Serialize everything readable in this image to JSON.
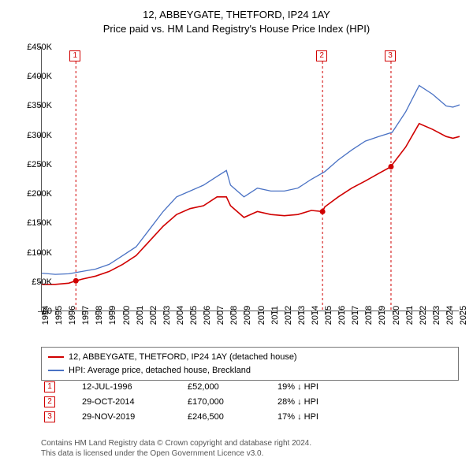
{
  "title_line1": "12, ABBEYGATE, THETFORD, IP24 1AY",
  "title_line2": "Price paid vs. HM Land Registry's House Price Index (HPI)",
  "chart": {
    "type": "line",
    "background_color": "#ffffff",
    "axis_color": "#555555",
    "x_range": [
      1994,
      2025
    ],
    "y_range": [
      0,
      450000
    ],
    "y_ticks": [
      0,
      50000,
      100000,
      150000,
      200000,
      250000,
      300000,
      350000,
      400000,
      450000
    ],
    "y_tick_labels": [
      "£0",
      "£50K",
      "£100K",
      "£150K",
      "£200K",
      "£250K",
      "£300K",
      "£350K",
      "£400K",
      "£450K"
    ],
    "x_ticks": [
      1994,
      1995,
      1996,
      1997,
      1998,
      1999,
      2000,
      2001,
      2002,
      2003,
      2004,
      2005,
      2006,
      2007,
      2008,
      2009,
      2010,
      2011,
      2012,
      2013,
      2014,
      2015,
      2016,
      2017,
      2018,
      2019,
      2020,
      2021,
      2022,
      2023,
      2024,
      2025
    ],
    "label_fontsize": 11,
    "series": [
      {
        "name": "property",
        "label": "12, ABBEYGATE, THETFORD, IP24 1AY (detached house)",
        "color": "#d00000",
        "line_width": 1.6,
        "data": [
          [
            1994,
            46000
          ],
          [
            1995,
            46000
          ],
          [
            1996,
            48000
          ],
          [
            1996.53,
            52000
          ],
          [
            1997,
            55000
          ],
          [
            1998,
            60000
          ],
          [
            1999,
            68000
          ],
          [
            2000,
            80000
          ],
          [
            2001,
            95000
          ],
          [
            2002,
            120000
          ],
          [
            2003,
            145000
          ],
          [
            2004,
            165000
          ],
          [
            2005,
            175000
          ],
          [
            2006,
            180000
          ],
          [
            2007,
            195000
          ],
          [
            2007.7,
            195000
          ],
          [
            2008,
            180000
          ],
          [
            2009,
            160000
          ],
          [
            2010,
            170000
          ],
          [
            2011,
            165000
          ],
          [
            2012,
            163000
          ],
          [
            2013,
            165000
          ],
          [
            2014,
            172000
          ],
          [
            2014.83,
            170000
          ],
          [
            2015,
            178000
          ],
          [
            2016,
            195000
          ],
          [
            2017,
            210000
          ],
          [
            2018,
            222000
          ],
          [
            2019,
            235000
          ],
          [
            2019.91,
            246500
          ],
          [
            2020,
            250000
          ],
          [
            2021,
            280000
          ],
          [
            2022,
            320000
          ],
          [
            2023,
            310000
          ],
          [
            2024,
            298000
          ],
          [
            2024.5,
            295000
          ],
          [
            2025,
            298000
          ]
        ]
      },
      {
        "name": "hpi",
        "label": "HPI: Average price, detached house, Breckland",
        "color": "#4a72c4",
        "line_width": 1.3,
        "data": [
          [
            1994,
            65000
          ],
          [
            1995,
            63000
          ],
          [
            1996,
            64000
          ],
          [
            1997,
            68000
          ],
          [
            1998,
            72000
          ],
          [
            1999,
            80000
          ],
          [
            2000,
            95000
          ],
          [
            2001,
            110000
          ],
          [
            2002,
            140000
          ],
          [
            2003,
            170000
          ],
          [
            2004,
            195000
          ],
          [
            2005,
            205000
          ],
          [
            2006,
            215000
          ],
          [
            2007,
            230000
          ],
          [
            2007.7,
            240000
          ],
          [
            2008,
            215000
          ],
          [
            2009,
            195000
          ],
          [
            2010,
            210000
          ],
          [
            2011,
            205000
          ],
          [
            2012,
            205000
          ],
          [
            2013,
            210000
          ],
          [
            2014,
            225000
          ],
          [
            2015,
            238000
          ],
          [
            2016,
            258000
          ],
          [
            2017,
            275000
          ],
          [
            2018,
            290000
          ],
          [
            2019,
            298000
          ],
          [
            2020,
            305000
          ],
          [
            2021,
            340000
          ],
          [
            2022,
            385000
          ],
          [
            2023,
            370000
          ],
          [
            2024,
            350000
          ],
          [
            2024.5,
            348000
          ],
          [
            2025,
            352000
          ]
        ]
      }
    ],
    "markers": [
      {
        "n": "1",
        "year": 1996.53,
        "price": 52000,
        "color": "#d00000"
      },
      {
        "n": "2",
        "year": 2014.83,
        "price": 170000,
        "color": "#d00000"
      },
      {
        "n": "3",
        "year": 2019.91,
        "price": 246500,
        "color": "#d00000"
      }
    ]
  },
  "legend": {
    "border_color": "#777777",
    "series1_color": "#d00000",
    "series1_label": "12, ABBEYGATE, THETFORD, IP24 1AY (detached house)",
    "series2_color": "#4a72c4",
    "series2_label": "HPI: Average price, detached house, Breckland"
  },
  "transactions": [
    {
      "n": "1",
      "color": "#d00000",
      "date": "12-JUL-1996",
      "price": "£52,000",
      "pct": "19% ↓ HPI"
    },
    {
      "n": "2",
      "color": "#d00000",
      "date": "29-OCT-2014",
      "price": "£170,000",
      "pct": "28% ↓ HPI"
    },
    {
      "n": "3",
      "color": "#d00000",
      "date": "29-NOV-2019",
      "price": "£246,500",
      "pct": "17% ↓ HPI"
    }
  ],
  "footer_line1": "Contains HM Land Registry data © Crown copyright and database right 2024.",
  "footer_line2": "This data is licensed under the Open Government Licence v3.0."
}
